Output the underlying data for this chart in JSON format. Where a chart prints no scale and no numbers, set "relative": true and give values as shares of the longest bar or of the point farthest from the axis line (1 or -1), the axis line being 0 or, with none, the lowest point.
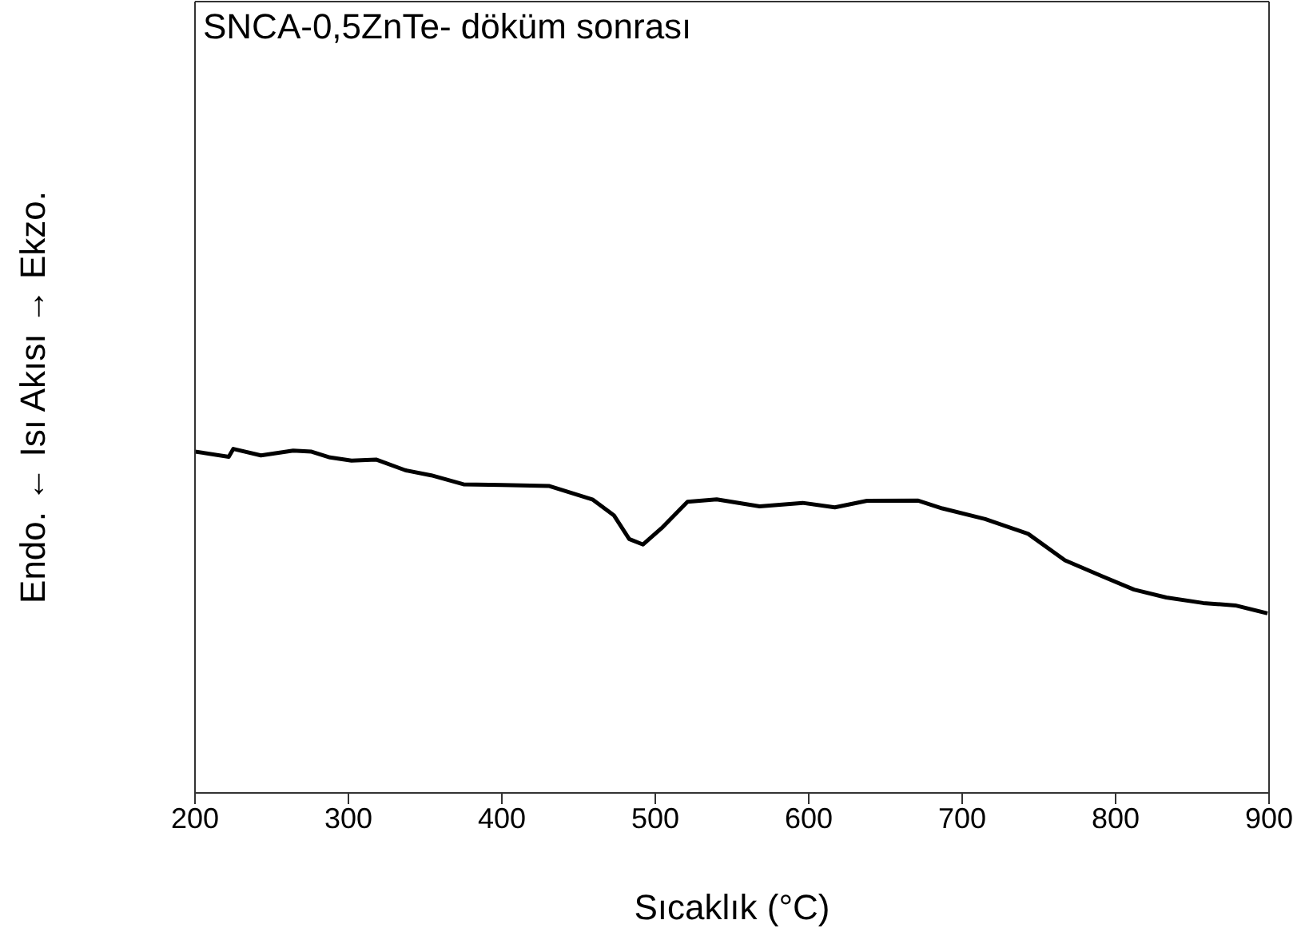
{
  "chart_data": {
    "type": "line",
    "title": "SNCA-0,5ZnTe- döküm sonrası",
    "xlabel": "Sıcaklık (°C)",
    "ylabel": "Endo. ← Isı Akısı → Ekzo.",
    "relative": true,
    "xlim": [
      200,
      900
    ],
    "xticks": [
      200,
      300,
      400,
      500,
      600,
      700,
      800,
      900
    ],
    "grid": false,
    "legend": false,
    "marker": "none",
    "line_style": "solid",
    "series": [
      {
        "color": "#000000",
        "x": [
          200,
          222,
          225,
          243,
          264,
          276,
          288,
          302,
          318,
          337,
          354,
          375,
          400,
          431,
          459,
          473,
          483,
          492,
          504,
          521,
          540,
          568,
          596,
          617,
          638,
          671,
          687,
          715,
          743,
          767,
          791,
          812,
          833,
          857,
          878,
          899
        ],
        "values": [
          0.992,
          0.977,
          1.0,
          0.981,
          0.995,
          0.992,
          0.975,
          0.966,
          0.969,
          0.938,
          0.923,
          0.897,
          0.895,
          0.892,
          0.853,
          0.807,
          0.738,
          0.722,
          0.769,
          0.846,
          0.853,
          0.833,
          0.843,
          0.83,
          0.849,
          0.85,
          0.827,
          0.796,
          0.753,
          0.676,
          0.63,
          0.591,
          0.568,
          0.552,
          0.545,
          0.522
        ]
      }
    ]
  }
}
